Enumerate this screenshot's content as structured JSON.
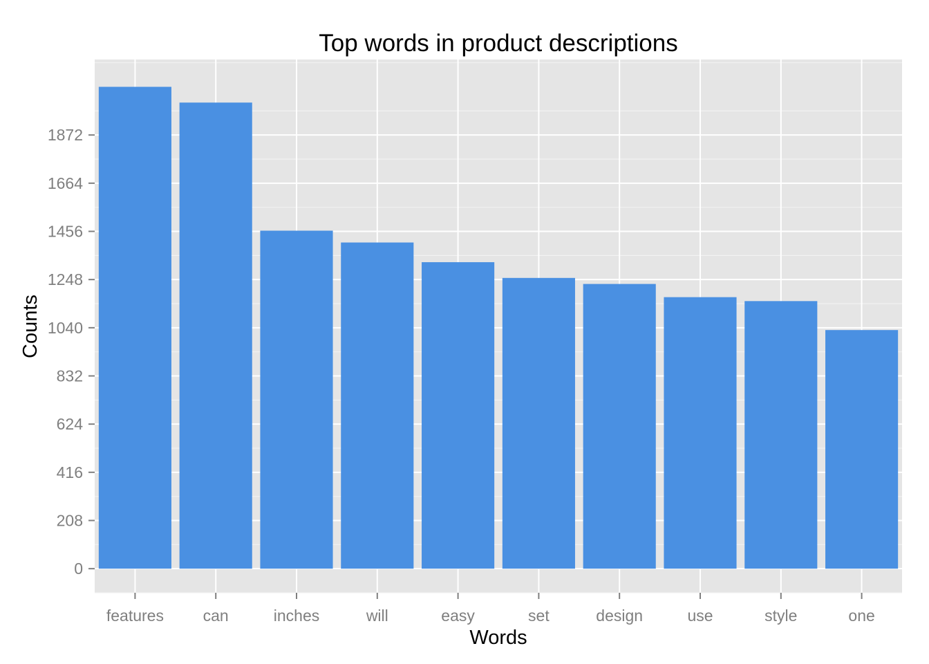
{
  "chart_data": {
    "type": "bar",
    "title": "Top words in product descriptions",
    "xlabel": "Words",
    "ylabel": "Counts",
    "categories": [
      "features",
      "can",
      "inches",
      "will",
      "easy",
      "set",
      "design",
      "use",
      "style",
      "one"
    ],
    "values": [
      2080,
      2012,
      1459,
      1408,
      1323,
      1255,
      1229,
      1172,
      1155,
      1030
    ],
    "y_ticks": [
      "0",
      "208",
      "416",
      "624",
      "832",
      "1040",
      "1248",
      "1456",
      "1664",
      "1872"
    ],
    "ylim": [
      -104,
      2198
    ],
    "grid": true,
    "legend": "none",
    "colors": {
      "bar": "#4a90e2",
      "panel": "#e5e5e5",
      "grid_major": "#ffffff",
      "grid_minor": "#f2f2f2",
      "tick_label": "#7f7f7f",
      "text": "#000000"
    }
  }
}
